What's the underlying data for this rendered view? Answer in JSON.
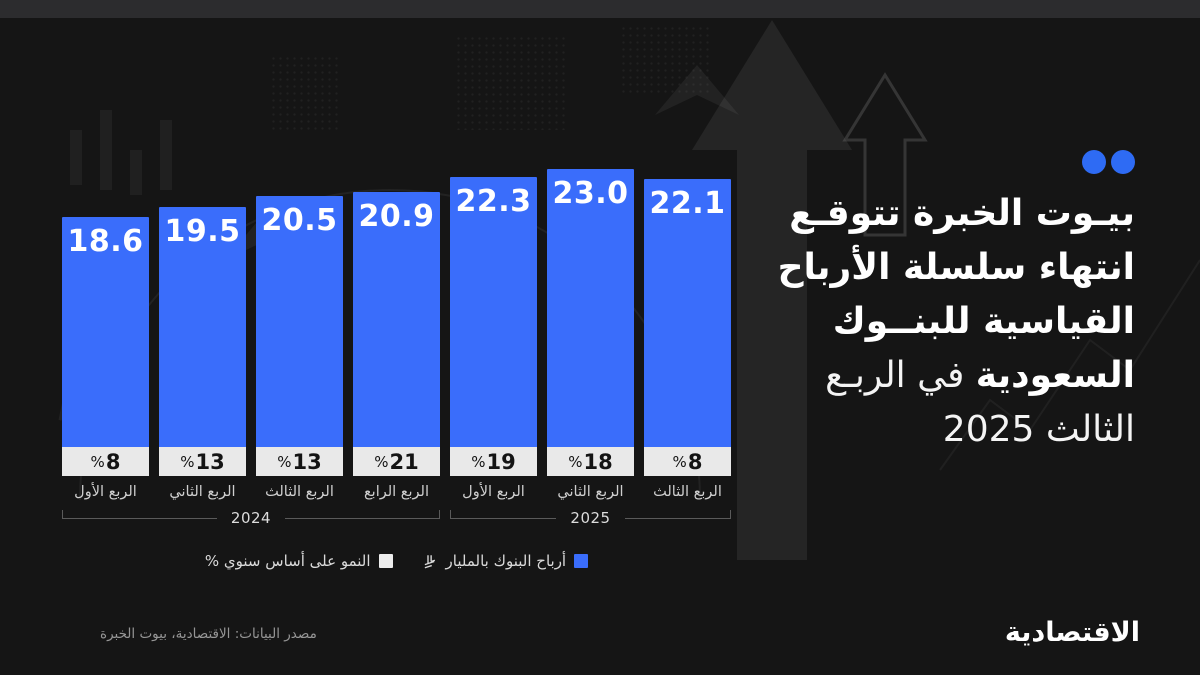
{
  "title": {
    "line1": "بيـوت الخبرة تتوقـع",
    "line2": "انتهاء سلسلة الأرباح",
    "line3": "القياسية للبنــوك",
    "line4_bold": "السعودية",
    "line4_regular": " في الربـع",
    "line5_regular": "الثالث 2025"
  },
  "legend": {
    "items": [
      {
        "label": "أرباح البنوك بالمليار",
        "swatch": "#3a6dfb",
        "riyal_icon": true
      },
      {
        "label": "النمو على أساس سنوي %",
        "swatch": "#ededed",
        "riyal_icon": false
      }
    ]
  },
  "footer": {
    "source": "مصدر البيانات: الاقتصادية، بيوت الخبرة",
    "brand": "الاقتصادية"
  },
  "chart_data": {
    "type": "bar",
    "categories": [
      "الربع الأول",
      "الربع الثاني",
      "الربع الثالث",
      "الربع الرابع",
      "الربع الأول",
      "الربع الثاني",
      "الربع الثالث"
    ],
    "series": [
      {
        "name": "أرباح البنوك بالمليار ريال",
        "values": [
          18.6,
          19.5,
          20.5,
          20.9,
          22.3,
          23.0,
          22.1
        ]
      },
      {
        "name": "النمو على أساس سنوي %",
        "values": [
          8,
          13,
          13,
          21,
          19,
          18,
          8
        ]
      }
    ],
    "growth_labels": [
      "%8",
      "%13",
      "%13",
      "%21",
      "%19",
      "%18",
      "%8"
    ],
    "year_groups": [
      {
        "label": "2024",
        "from": 0,
        "to": 3
      },
      {
        "label": "2025",
        "from": 4,
        "to": 6
      }
    ],
    "bar_color": "#3a6dfb",
    "growth_box_color": "#e9e9e9",
    "accent_blue": "#2e6bf4",
    "legend_position": "bottom-center",
    "grid": false,
    "ylim": [
      0,
      23
    ]
  }
}
